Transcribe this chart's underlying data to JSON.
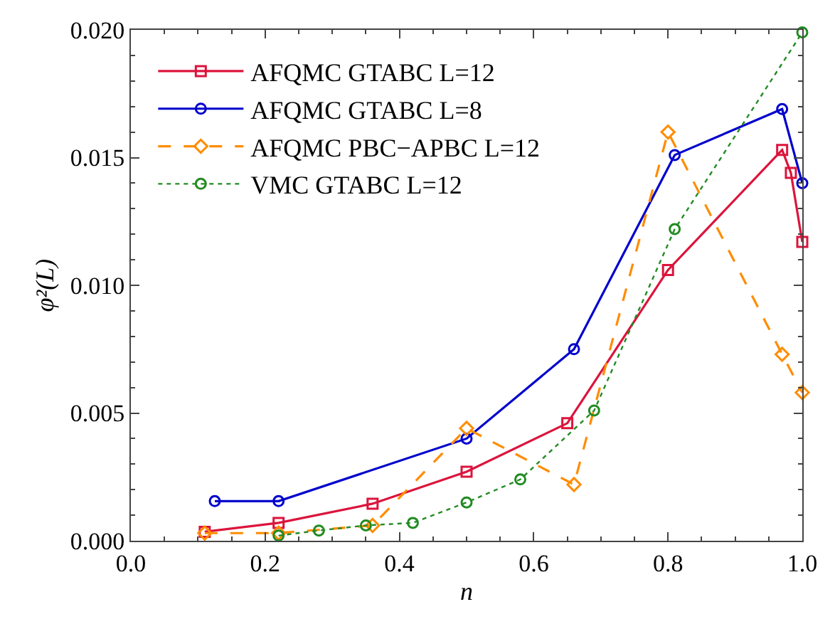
{
  "chart_data": {
    "type": "line",
    "xlabel": "n",
    "ylabel": "φ²(L)",
    "xlim": [
      0,
      1
    ],
    "ylim": [
      0,
      0.02
    ],
    "xticks": [
      {
        "value": 0,
        "label": "0.0"
      },
      {
        "value": 0.2,
        "label": "0.2"
      },
      {
        "value": 0.4,
        "label": "0.4"
      },
      {
        "value": 0.6,
        "label": "0.6"
      },
      {
        "value": 0.8,
        "label": "0.8"
      },
      {
        "value": 1,
        "label": "1.0"
      }
    ],
    "yticks": [
      {
        "value": 0,
        "label": "0.000"
      },
      {
        "value": 0.005,
        "label": "0.005"
      },
      {
        "value": 0.01,
        "label": "0.010"
      },
      {
        "value": 0.015,
        "label": "0.015"
      },
      {
        "value": 0.02,
        "label": "0.020"
      }
    ],
    "legend": "top left",
    "series": [
      {
        "name": "AFQMC GTABC L=12",
        "color": "#dc143c",
        "marker": "square",
        "line_style": "solid",
        "x": [
          0.11,
          0.22,
          0.36,
          0.5,
          0.65,
          0.8,
          0.97,
          0.983,
          1.0
        ],
        "values": [
          0.00035,
          0.0007,
          0.00145,
          0.0027,
          0.0046,
          0.0106,
          0.0153,
          0.0144,
          0.0117
        ]
      },
      {
        "name": "AFQMC GTABC L=8",
        "color": "#0000cd",
        "marker": "circle",
        "line_style": "solid",
        "x": [
          0.125,
          0.22,
          0.5,
          0.66,
          0.81,
          0.97,
          1.0
        ],
        "values": [
          0.00155,
          0.00155,
          0.004,
          0.0075,
          0.0151,
          0.0169,
          0.014
        ]
      },
      {
        "name": "AFQMC PBC−APBC L=12",
        "color": "#ff8c00",
        "marker": "diamond",
        "line_style": "dashed",
        "x": [
          0.11,
          0.22,
          0.36,
          0.5,
          0.66,
          0.8,
          0.97,
          1.0
        ],
        "values": [
          0.0003,
          0.0003,
          0.0006,
          0.0044,
          0.0022,
          0.016,
          0.0073,
          0.0058
        ]
      },
      {
        "name": "VMC GTABC L=12",
        "color": "#228b22",
        "marker": "circle",
        "line_style": "dotted",
        "x": [
          0.22,
          0.28,
          0.35,
          0.42,
          0.5,
          0.58,
          0.69,
          0.81,
          1.0
        ],
        "values": [
          0.0002,
          0.0004,
          0.0006,
          0.0007,
          0.0015,
          0.0024,
          0.0051,
          0.0122,
          0.0199
        ]
      }
    ]
  }
}
